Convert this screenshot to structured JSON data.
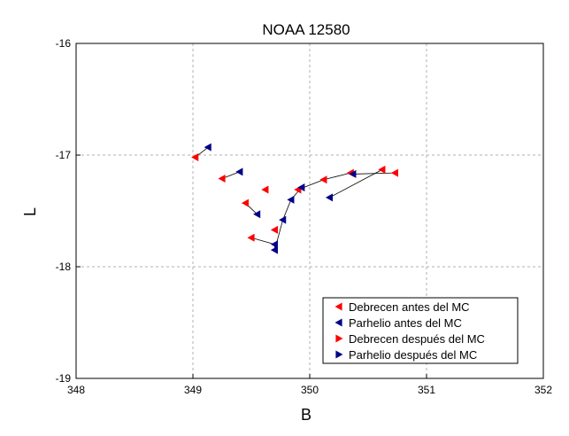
{
  "chart_data": {
    "type": "scatter",
    "title": "NOAA 12580",
    "xlabel": "B",
    "ylabel": "L",
    "xlim": [
      348,
      352
    ],
    "ylim": [
      -19,
      -16
    ],
    "xticks": [
      348,
      349,
      350,
      351,
      352
    ],
    "yticks": [
      -19,
      -18,
      -17,
      -16
    ],
    "xtick_labels": [
      "348",
      "349",
      "350",
      "351",
      "352"
    ],
    "ytick_labels": [
      "-19",
      "-18",
      "-17",
      "-16"
    ],
    "grid": true,
    "legend_position": "bottom-right",
    "series": [
      {
        "name": "Debrecen antes del MC",
        "color": "#ff0000",
        "marker": "triangle-left",
        "points": [
          [
            349.02,
            -17.02
          ],
          [
            349.25,
            -17.21
          ],
          [
            349.45,
            -17.43
          ],
          [
            349.62,
            -17.31
          ],
          [
            349.7,
            -17.67
          ],
          [
            349.5,
            -17.74
          ],
          [
            349.9,
            -17.31
          ],
          [
            350.12,
            -17.22
          ],
          [
            350.35,
            -17.16
          ],
          [
            350.62,
            -17.13
          ],
          [
            350.73,
            -17.16
          ]
        ]
      },
      {
        "name": "Parhelio antes del MC",
        "color": "#00008b",
        "marker": "triangle-left",
        "points": [
          [
            349.13,
            -16.93
          ],
          [
            349.4,
            -17.15
          ],
          [
            349.55,
            -17.53
          ],
          [
            349.7,
            -17.8
          ],
          [
            349.7,
            -17.85
          ],
          [
            349.77,
            -17.58
          ],
          [
            349.84,
            -17.4
          ],
          [
            349.93,
            -17.29
          ],
          [
            350.17,
            -17.38
          ],
          [
            350.37,
            -17.17
          ]
        ]
      },
      {
        "name": "Debrecen después del MC",
        "color": "#ff0000",
        "marker": "triangle-right",
        "points": []
      },
      {
        "name": "Parhelio después del MC",
        "color": "#00008b",
        "marker": "triangle-right",
        "points": []
      }
    ],
    "connections": [
      [
        [
          349.02,
          -17.02
        ],
        [
          349.13,
          -16.93
        ]
      ],
      [
        [
          349.25,
          -17.21
        ],
        [
          349.4,
          -17.15
        ]
      ],
      [
        [
          349.45,
          -17.43
        ],
        [
          349.55,
          -17.53
        ]
      ],
      [
        [
          349.5,
          -17.74
        ],
        [
          349.7,
          -17.8
        ]
      ],
      [
        [
          349.7,
          -17.8
        ],
        [
          349.7,
          -17.85
        ]
      ],
      [
        [
          349.7,
          -17.85
        ],
        [
          349.77,
          -17.58
        ]
      ],
      [
        [
          349.77,
          -17.58
        ],
        [
          349.84,
          -17.4
        ]
      ],
      [
        [
          349.84,
          -17.4
        ],
        [
          349.93,
          -17.29
        ]
      ],
      [
        [
          349.9,
          -17.31
        ],
        [
          350.12,
          -17.22
        ]
      ],
      [
        [
          350.12,
          -17.22
        ],
        [
          350.35,
          -17.16
        ]
      ],
      [
        [
          350.17,
          -17.38
        ],
        [
          350.62,
          -17.13
        ]
      ],
      [
        [
          350.37,
          -17.17
        ],
        [
          350.73,
          -17.16
        ]
      ]
    ]
  }
}
